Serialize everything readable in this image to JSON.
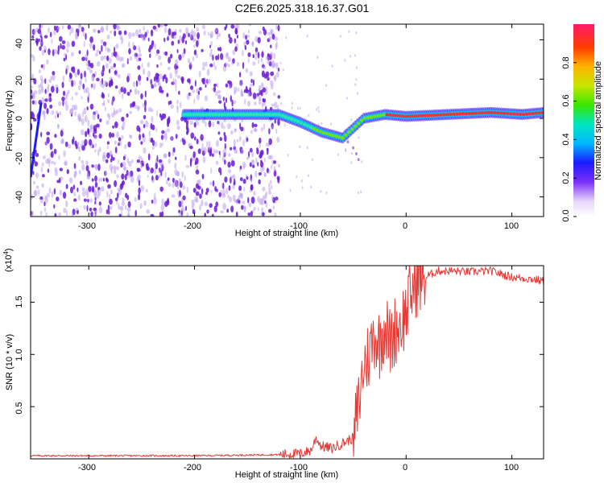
{
  "title": "C2E6.2025.318.16.37.G01",
  "chart_data": [
    {
      "type": "heatmap",
      "title": "C2E6.2025.318.16.37.G01",
      "xlabel": "Height of straight line (km)",
      "ylabel": "Frequency (Hz)",
      "xlim": [
        -355,
        130
      ],
      "ylim": [
        -50,
        48
      ],
      "x_ticks": [
        -300,
        -200,
        -100,
        0,
        100
      ],
      "y_ticks": [
        -40,
        -20,
        0,
        20,
        40
      ],
      "colorbar": {
        "label": "Normalized spectral amplitude",
        "range": [
          0.0,
          1.0
        ],
        "ticks": [
          0.0,
          0.2,
          0.4,
          0.6,
          0.8
        ]
      },
      "ridge": {
        "description_points_x": [
          -210,
          -180,
          -150,
          -120,
          -100,
          -80,
          -60,
          -40,
          -20,
          0,
          40,
          80,
          110,
          130
        ],
        "frequency_y": [
          2,
          2,
          2,
          2,
          -2,
          -7,
          -10,
          0,
          2,
          1,
          2,
          3,
          2,
          3
        ]
      }
    },
    {
      "type": "line",
      "xlabel": "Height of straight line (km)",
      "ylabel": "SNR (10 * v/v)",
      "y_multiplier": "(x10^4)",
      "y_multiplier_base": "(x10",
      "y_multiplier_exp": "4",
      "y_multiplier_close": ")",
      "xlim": [
        -355,
        130
      ],
      "ylim": [
        0,
        1.85
      ],
      "x_ticks": [
        -300,
        -200,
        -100,
        0,
        100
      ],
      "y_ticks": [
        0.5,
        1.0,
        1.5
      ],
      "series": [
        {
          "name": "SNR",
          "color": "#e53935",
          "x": [
            -355,
            -200,
            -120,
            -100,
            -90,
            -85,
            -80,
            -70,
            -60,
            -50,
            -45,
            -40,
            -35,
            -30,
            -25,
            -20,
            -15,
            -10,
            -5,
            0,
            5,
            10,
            20,
            30,
            40,
            60,
            80,
            100,
            120,
            130
          ],
          "values": [
            0.03,
            0.03,
            0.04,
            0.05,
            0.08,
            0.2,
            0.12,
            0.1,
            0.15,
            0.2,
            0.5,
            0.9,
            1.0,
            1.2,
            1.1,
            1.3,
            1.1,
            1.25,
            1.3,
            1.4,
            1.6,
            1.7,
            1.75,
            1.8,
            1.8,
            1.79,
            1.8,
            1.74,
            1.72,
            1.7
          ]
        }
      ]
    }
  ],
  "tick_labels": {
    "top_x": [
      "-300",
      "-200",
      "-100",
      "0",
      "100"
    ],
    "top_y": [
      "40",
      "20",
      "0",
      "-20",
      "-40"
    ],
    "cbar": [
      "0.0",
      "0.2",
      "0.4",
      "0.6",
      "0.8"
    ],
    "bot_x": [
      "-300",
      "-200",
      "-100",
      "0",
      "100"
    ],
    "bot_y": [
      "1.5",
      "1.0",
      "0.5"
    ]
  },
  "colors": {
    "snr_line": "#e53935",
    "speckle": "#6a1bd6",
    "speckle_light": "#b799ee"
  }
}
